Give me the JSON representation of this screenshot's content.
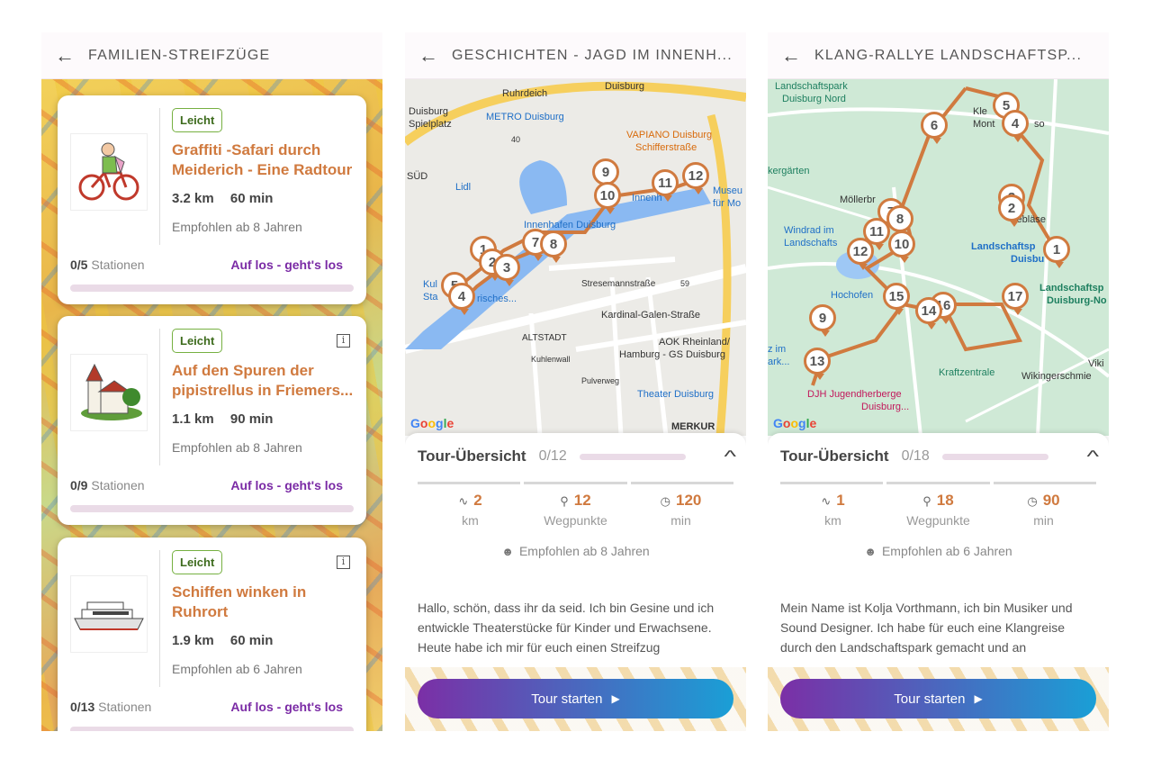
{
  "screens": [
    {
      "title": "FAMILIEN-STREIFZÜGE",
      "cards": [
        {
          "badge": "Leicht",
          "title_line1": "Graffiti -Safari durch",
          "title_line2": "Meiderich - Eine Radtour",
          "distance": "3.2 km",
          "duration": "60 min",
          "recommended": "Empfohlen ab 8 Jahren",
          "stations_count": "0/5",
          "stations_label": "Stationen",
          "cta": "Auf los - geht's los",
          "has_info": false,
          "thumb": "cyclist-icon"
        },
        {
          "badge": "Leicht",
          "title_line1": "Auf den Spuren der",
          "title_line2": "pipistrellus in Friemers...",
          "distance": "1.1 km",
          "duration": "90 min",
          "recommended": "Empfohlen ab 8 Jahren",
          "stations_count": "0/9",
          "stations_label": "Stationen",
          "cta": "Auf los - geht's los",
          "has_info": true,
          "thumb": "church-icon"
        },
        {
          "badge": "Leicht",
          "title_line1": "Schiffen winken in",
          "title_line2": "Ruhrort",
          "distance": "1.9 km",
          "duration": "60 min",
          "recommended": "Empfohlen ab 6 Jahren",
          "stations_count": "0/13",
          "stations_label": "Stationen",
          "cta": "Auf los - geht's los",
          "has_info": true,
          "thumb": "ship-icon"
        }
      ]
    },
    {
      "title": "GESCHICHTEN - JAGD IM INNENH...",
      "map_labels": {
        "duisburg_top": "Duisburg",
        "ruhrdeich": "Ruhrdeich",
        "duisburg_spielplatz1": "Duisburg",
        "duisburg_spielplatz2": "Spielplatz",
        "metro": "METRO Duisburg",
        "road40": "40",
        "sud": "SÜD",
        "vapiano1": "VAPIANO Duisburg",
        "vapiano2": "Schifferstraße",
        "lidl": "Lidl",
        "museum1": "Museu",
        "museum2": "für Mo",
        "innenhafen_text": "Innenh",
        "innenhafen": "Innenhafen Duisburg",
        "kul": "Kul",
        "sta": "Sta",
        "risches": "risches...",
        "stresemann": "Stresemannstraße",
        "road59": "59",
        "kardinal": "Kardinal-Galen-Straße",
        "altstadt": "ALTSTADT",
        "aok1": "AOK Rheinland/",
        "aok2": "Hamburg - GS Duisburg",
        "kuhlenwall": "Kuhlenwall",
        "pulverweg": "Pulverweg",
        "theater": "Theater Duisburg",
        "merkur": "MERKUR"
      },
      "pins": [
        "9",
        "10",
        "11",
        "12",
        "7",
        "8",
        "1",
        "2",
        "3",
        "5",
        "4"
      ],
      "google": [
        "G",
        "o",
        "o",
        "g",
        "l",
        "e"
      ],
      "sheet_title": "Tour-Übersicht",
      "sheet_count": "0/12",
      "distance_value": "2",
      "distance_unit": "km",
      "waypoints_value": "12",
      "waypoints_unit": "Wegpunkte",
      "duration_value": "120",
      "duration_unit": "min",
      "recommended": "Empfohlen ab 8 Jahren",
      "desc": "Hallo, schön, dass ihr da seid. Ich bin Gesine und ich entwickle Theaterstücke für Kinder und Erwachsene. Heute habe ich mir für euch einen Streifzug",
      "start": "Tour starten"
    },
    {
      "title": "KLANG-RALLYE LANDSCHAFTSP...",
      "map_labels": {
        "lp_nord1": "Landschaftspark",
        "lp_nord2": "Duisburg Nord",
        "kle": "Kle",
        "mont": "Mont",
        "so": "so",
        "kergarten": "kergärten",
        "mollerbr": "Möllerbr",
        "geblase": "Gebläse",
        "lp_center1": "Landschaftsp",
        "lp_center2": "Duisbu",
        "windrad1": "Windrad im",
        "windrad2": "Landschafts",
        "lp_right1": "Landschaftsp",
        "lp_right2": "Duisburg-No",
        "hochofen": "Hochofen",
        "zim1": "z im",
        "zim2": "ark...",
        "viki": "Viki",
        "wikinger": "Wikingerschmie",
        "kraft": "Kraftzentrale",
        "djh1": "DJH Jugendherberge",
        "djh2": "Duisburg..."
      },
      "pins": [
        "5",
        "4",
        "6",
        "3",
        "2",
        "1",
        "7",
        "8",
        "11",
        "10",
        "12",
        "15",
        "16",
        "14",
        "17",
        "9",
        "13"
      ],
      "google": [
        "G",
        "o",
        "o",
        "g",
        "l",
        "e"
      ],
      "sheet_title": "Tour-Übersicht",
      "sheet_count": "0/18",
      "distance_value": "1",
      "distance_unit": "km",
      "waypoints_value": "18",
      "waypoints_unit": "Wegpunkte",
      "duration_value": "90",
      "duration_unit": "min",
      "recommended": "Empfohlen ab 6 Jahren",
      "desc": "Mein Name ist Kolja Vorthmann, ich bin Musiker und Sound Designer. Ich habe für euch eine Klangreise durch den Landschaftspark gemacht und an",
      "start": "Tour starten"
    }
  ]
}
